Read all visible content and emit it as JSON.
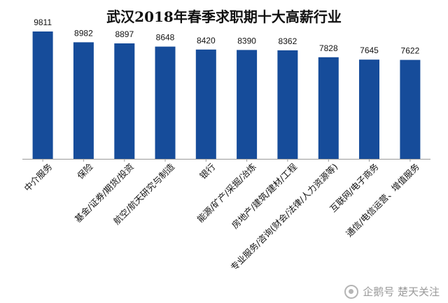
{
  "chart_data": {
    "type": "bar",
    "title": "武汉2018年春季求职期十大高薪行业",
    "xlabel": "",
    "ylabel": "",
    "ylim": [
      0,
      9811
    ],
    "grid": false,
    "legend": "none",
    "bar_color": "#164C9A",
    "categories": [
      "中介服务",
      "保险",
      "基金/证券/期货/投资",
      "航空/航天研究与制造",
      "银行",
      "能源/矿产/采掘/冶炼",
      "房地产/建筑/建材/工程",
      "专业服务/咨询(财会/法律/人力资源等)",
      "互联网/电子商务",
      "通信/电信运营、增值服务"
    ],
    "values": [
      9811,
      8982,
      8897,
      8648,
      8420,
      8390,
      8362,
      7828,
      7645,
      7622
    ]
  },
  "watermark": {
    "text": "企鹅号 楚天关注"
  }
}
